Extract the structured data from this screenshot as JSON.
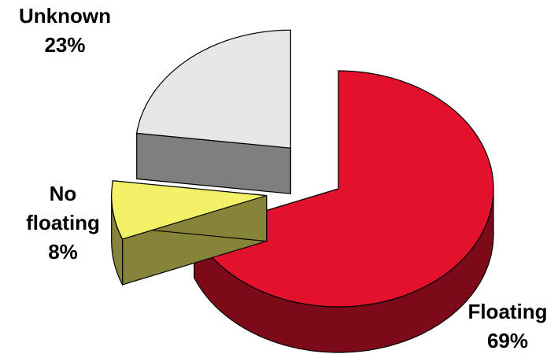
{
  "chart_data": {
    "type": "pie",
    "categories": [
      "Floating",
      "No floating",
      "Unknown"
    ],
    "values": [
      69,
      8,
      23
    ],
    "value_labels": [
      "69%",
      "8%",
      "23%"
    ],
    "colors": [
      "#e3122c",
      "#f2f066",
      "#e6e6e6"
    ]
  }
}
